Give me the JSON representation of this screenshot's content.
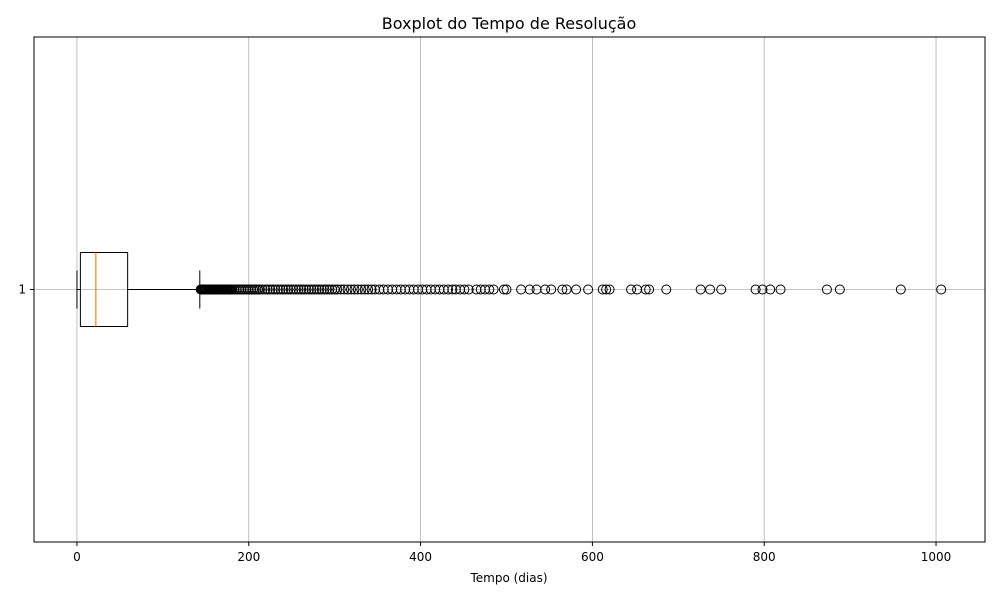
{
  "chart_data": {
    "type": "boxplot",
    "orientation": "horizontal",
    "title": "Boxplot do Tempo de Resolução",
    "xlabel": "Tempo (dias)",
    "ylabel": "",
    "xlim": [
      -50,
      1057
    ],
    "xticks": [
      0,
      200,
      400,
      600,
      800,
      1000
    ],
    "xtick_labels": [
      "0",
      "200",
      "400",
      "600",
      "800",
      "1000"
    ],
    "grid": true,
    "categories": [
      "1"
    ],
    "series": [
      {
        "category": "1",
        "whisker_low": 0,
        "q1": 4,
        "median": 22,
        "q3": 59,
        "whisker_high": 143,
        "outliers": [
          144,
          145,
          146,
          147,
          148,
          149,
          150,
          151,
          152,
          153,
          154,
          155,
          156,
          157,
          158,
          159,
          160,
          161,
          162,
          163,
          164,
          165,
          166,
          167,
          168,
          169,
          170,
          171,
          172,
          173,
          174,
          175,
          176,
          177,
          178,
          179,
          180,
          181,
          183,
          185,
          187,
          189,
          191,
          193,
          195,
          197,
          199,
          201,
          203,
          205,
          207,
          209,
          211,
          213,
          216,
          219,
          222,
          225,
          228,
          231,
          234,
          237,
          240,
          243,
          246,
          249,
          252,
          255,
          258,
          261,
          264,
          267,
          270,
          273,
          276,
          279,
          282,
          285,
          288,
          291,
          294,
          297,
          300,
          303,
          307,
          311,
          315,
          319,
          323,
          327,
          331,
          335,
          339,
          343,
          347,
          352,
          357,
          362,
          367,
          372,
          377,
          382,
          387,
          392,
          397,
          402,
          407,
          412,
          417,
          422,
          427,
          432,
          437,
          441,
          446,
          451,
          456,
          465,
          470,
          475,
          480,
          485,
          497,
          500,
          517,
          527,
          535,
          545,
          552,
          565,
          570,
          581,
          595,
          612,
          616,
          620,
          645,
          652,
          662,
          666,
          686,
          726,
          737,
          750,
          790,
          798,
          807,
          819,
          873,
          888,
          959,
          1006
        ]
      }
    ],
    "colors": {
      "median": "#ff7f0e",
      "box": "#000000",
      "grid": "#b0b0b0"
    }
  }
}
